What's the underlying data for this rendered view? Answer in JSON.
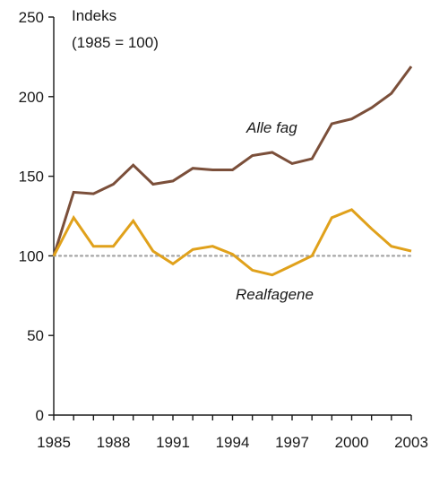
{
  "chart_data": {
    "type": "line",
    "title": "Indeks",
    "subtitle": "(1985 = 100)",
    "xlabel": "",
    "ylabel": "",
    "xlim": [
      1985,
      2003
    ],
    "ylim": [
      0,
      250
    ],
    "x_ticks": [
      1985,
      1988,
      1991,
      1994,
      1997,
      2000,
      2003
    ],
    "y_ticks": [
      0,
      50,
      100,
      150,
      200,
      250
    ],
    "reference_line": {
      "y": 100,
      "style": "dotted",
      "color": "#a6a6a6"
    },
    "grid": false,
    "legend": "inline labels",
    "x": [
      1985,
      1986,
      1987,
      1988,
      1989,
      1990,
      1991,
      1992,
      1993,
      1994,
      1995,
      1996,
      1997,
      1998,
      1999,
      2000,
      2001,
      2002,
      2003
    ],
    "series": [
      {
        "name": "Alle fag",
        "color": "#7b4f3a",
        "values": [
          100,
          140,
          139,
          145,
          157,
          145,
          147,
          155,
          154,
          154,
          163,
          165,
          158,
          161,
          183,
          186,
          193,
          202,
          219
        ]
      },
      {
        "name": "Realfagene",
        "color": "#e0a11b",
        "values": [
          100,
          124,
          106,
          106,
          122,
          103,
          95,
          104,
          106,
          101,
          91,
          88,
          94,
          100,
          124,
          129,
          117,
          106,
          103
        ]
      }
    ]
  }
}
